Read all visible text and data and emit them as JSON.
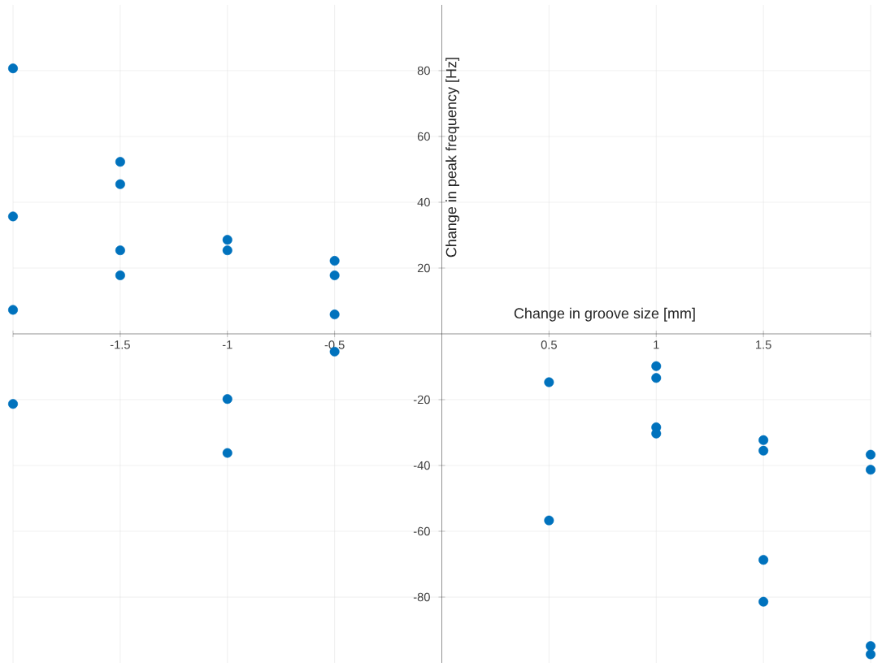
{
  "chart_data": {
    "type": "scatter",
    "xlabel": "Change in groove size [mm]",
    "ylabel": "Change in peak frequency [Hz]",
    "x": [
      -2,
      -2,
      -2,
      -2,
      -1.5,
      -1.5,
      -1.5,
      -1.5,
      -1,
      -1,
      -1,
      -1,
      -0.5,
      -0.5,
      -0.5,
      -0.5,
      0.5,
      0.5,
      1,
      1,
      1,
      1,
      1.5,
      1.5,
      1.5,
      1.5,
      2,
      2,
      2,
      2
    ],
    "series": [
      {
        "color": "#0072bd",
        "values": [
          80.7,
          35.7,
          7.3,
          -21.3,
          52.3,
          45.5,
          25.4,
          17.8,
          28.6,
          25.4,
          -19.8,
          -36.2,
          22.2,
          17.8,
          5.9,
          -5.4,
          -14.7,
          -56.7,
          -9.8,
          -13.4,
          -28.4,
          -30.3,
          -32.3,
          -35.5,
          -68.7,
          -81.4,
          -36.7,
          -41.3,
          -94.9,
          -97.4
        ]
      }
    ],
    "xlim": [
      -2,
      2
    ],
    "ylim": [
      -100,
      100
    ],
    "xticks": [
      {
        "value": -2,
        "label": null
      },
      -1.5,
      -1,
      -0.5,
      0.5,
      1,
      1.5,
      {
        "value": 2,
        "label": null
      }
    ],
    "yticks": [
      -80,
      -60,
      -40,
      -20,
      20,
      40,
      60,
      80
    ],
    "grid": true,
    "marker": "circle"
  }
}
